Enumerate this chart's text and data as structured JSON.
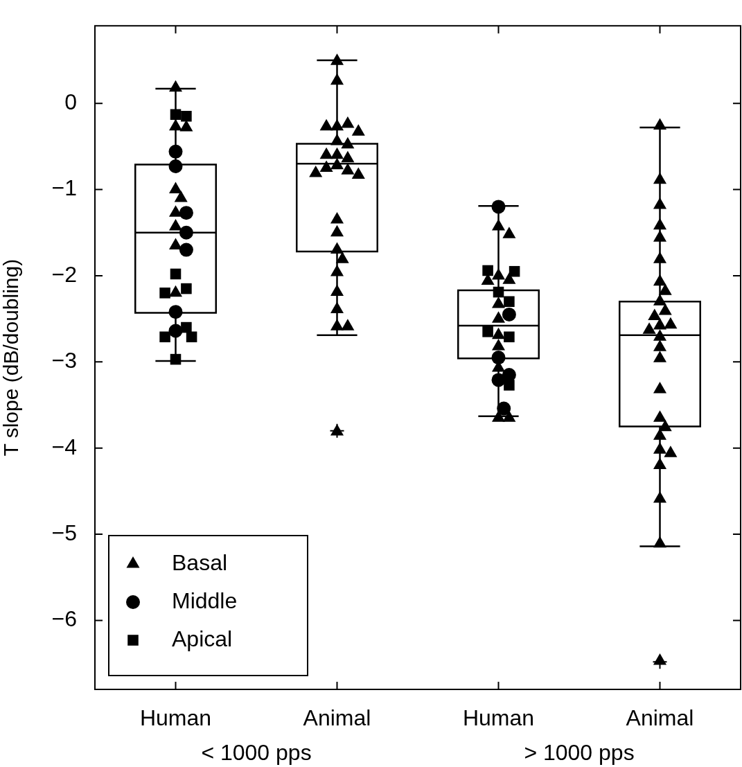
{
  "chart_data": [
    {
      "type": "box",
      "ylabel": "T slope (dB/doubling)",
      "xlabel": "< 1000 pps",
      "categories": [
        "Human",
        "Animal"
      ],
      "ylim": [
        -6.8,
        0.9
      ],
      "yticks": [
        -6,
        -5,
        -4,
        -3,
        -2,
        -1,
        0
      ],
      "boxes": [
        {
          "low": -2.99,
          "q1": -2.43,
          "median": -1.5,
          "q3": -0.71,
          "high": 0.17
        },
        {
          "low": -2.69,
          "q1": -1.72,
          "median": -0.7,
          "q3": -0.47,
          "high": 0.5,
          "outliers": [
            -3.8
          ]
        }
      ],
      "legend": "bottom left",
      "series": [
        {
          "name": "Basal",
          "type": "scatter",
          "marker": "triangle",
          "color": "#000000",
          "x": [
            "Human",
            "Human",
            "Human",
            "Human",
            "Human",
            "Human",
            "Human",
            "Human",
            "Human",
            "Animal",
            "Animal",
            "Animal",
            "Animal",
            "Animal",
            "Animal",
            "Animal",
            "Animal",
            "Animal",
            "Animal",
            "Animal",
            "Animal",
            "Animal",
            "Animal",
            "Animal",
            "Animal",
            "Animal",
            "Animal",
            "Animal",
            "Animal",
            "Animal",
            "Animal",
            "Animal",
            "Animal",
            "Animal",
            "Animal"
          ],
          "values": [
            0.18,
            -0.27,
            -0.28,
            -1.0,
            -1.1,
            -1.27,
            -1.43,
            -1.65,
            -2.2,
            0.49,
            0.26,
            -0.27,
            -0.24,
            -0.27,
            -0.33,
            -0.44,
            -0.48,
            -0.6,
            -0.64,
            -0.6,
            -0.72,
            -0.75,
            -0.78,
            -0.83,
            -0.81,
            -1.35,
            -1.5,
            -1.7,
            -1.81,
            -1.96,
            -2.19,
            -2.39,
            -2.59,
            -2.59,
            -3.81
          ]
        },
        {
          "name": "Middle",
          "type": "scatter",
          "marker": "circle",
          "color": "#000000",
          "x": [
            "Human",
            "Human",
            "Human",
            "Human",
            "Human",
            "Human",
            "Human"
          ],
          "values": [
            -0.56,
            -0.73,
            -1.27,
            -1.5,
            -1.7,
            -2.42,
            -2.64
          ]
        },
        {
          "name": "Apical",
          "type": "scatter",
          "marker": "square",
          "color": "#000000",
          "x": [
            "Human",
            "Human",
            "Human",
            "Human",
            "Human",
            "Human",
            "Human",
            "Human",
            "Human"
          ],
          "values": [
            -0.13,
            -0.15,
            -1.98,
            -2.15,
            -2.2,
            -2.6,
            -2.71,
            -2.71,
            -2.97
          ]
        }
      ]
    },
    {
      "type": "box",
      "xlabel": "> 1000 pps",
      "tick_labels": "x",
      "categories": [
        "Human",
        "Animal"
      ],
      "ylim": [
        -6.8,
        0.9
      ],
      "yticks": [
        -6,
        -5,
        -4,
        -3,
        -2,
        -1,
        0
      ],
      "boxes": [
        {
          "low": -3.63,
          "q1": -2.96,
          "median": -2.58,
          "q3": -2.17,
          "high": -1.19
        },
        {
          "low": -5.14,
          "q1": -3.75,
          "median": -2.69,
          "q3": -2.3,
          "high": -0.28,
          "outliers": [
            -6.48
          ]
        }
      ],
      "series": [
        {
          "type": "scatter",
          "marker": "triangle",
          "color": "#000000",
          "x": [
            "Human",
            "Human",
            "Human",
            "Human",
            "Human",
            "Human",
            "Human",
            "Human",
            "Human",
            "Human",
            "Human",
            "Human",
            "Animal",
            "Animal",
            "Animal",
            "Animal",
            "Animal",
            "Animal",
            "Animal",
            "Animal",
            "Animal",
            "Animal",
            "Animal",
            "Animal",
            "Animal",
            "Animal",
            "Animal",
            "Animal",
            "Animal",
            "Animal",
            "Animal",
            "Animal",
            "Animal",
            "Animal",
            "Animal",
            "Animal",
            "Animal",
            "Animal",
            "Animal"
          ],
          "values": [
            -1.43,
            -1.52,
            -2.0,
            -2.05,
            -2.06,
            -2.33,
            -2.5,
            -2.69,
            -2.82,
            -3.07,
            -3.65,
            -3.65,
            -0.26,
            -0.89,
            -1.18,
            -1.42,
            -1.56,
            -1.81,
            -2.07,
            -2.18,
            -2.3,
            -2.41,
            -2.47,
            -2.58,
            -2.57,
            -2.63,
            -2.71,
            -2.83,
            -2.96,
            -3.32,
            -3.65,
            -3.76,
            -3.86,
            -4.02,
            -4.06,
            -4.2,
            -4.59,
            -5.11,
            -6.47
          ]
        },
        {
          "type": "scatter",
          "marker": "circle",
          "color": "#000000",
          "x": [
            "Human",
            "Human",
            "Human",
            "Human",
            "Human",
            "Human"
          ],
          "values": [
            -1.2,
            -2.45,
            -2.95,
            -3.15,
            -3.21,
            -3.54
          ]
        },
        {
          "type": "scatter",
          "marker": "square",
          "color": "#000000",
          "x": [
            "Human",
            "Human",
            "Human",
            "Human",
            "Human",
            "Human",
            "Human"
          ],
          "values": [
            -1.94,
            -1.95,
            -2.19,
            -2.3,
            -2.71,
            -3.27,
            -2.65
          ]
        }
      ]
    }
  ]
}
